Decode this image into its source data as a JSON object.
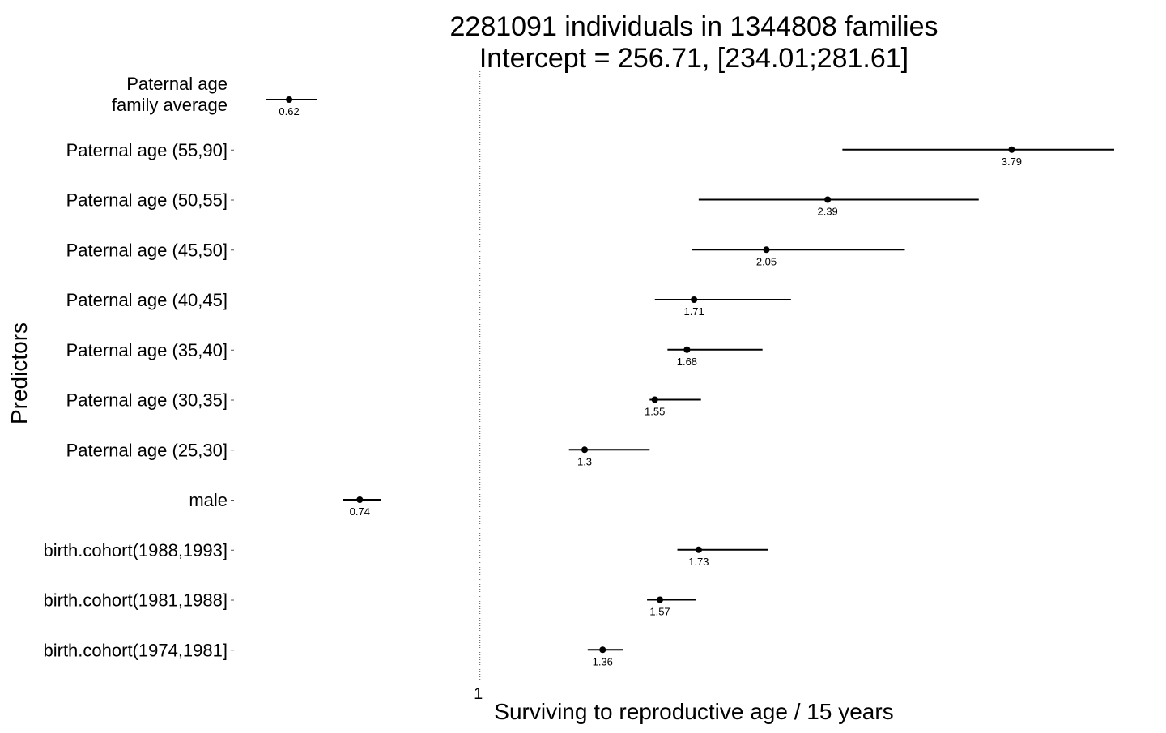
{
  "chart_data": {
    "type": "forest",
    "title_lines": [
      "2281091 individuals in 1344808 families",
      "Intercept = 256.71, [234.01;281.61]"
    ],
    "xlabel": "Surviving to reproductive age / 15 years",
    "ylabel": "Predictors",
    "x_scale": "log",
    "xlim": [
      0.54,
      4.9
    ],
    "reference_line": 1,
    "x_ticks": [
      {
        "value": 1,
        "label": "1"
      }
    ],
    "grid": false,
    "legend": "none",
    "colors": {
      "point": "#000000",
      "interval": "#000000",
      "reference_line": "#555555"
    },
    "rows": [
      {
        "label_lines": [
          "Paternal age",
          "family average"
        ],
        "estimate": 0.62,
        "value_label": "0.62",
        "ci": [
          0.585,
          0.665
        ]
      },
      {
        "label_lines": [
          "Paternal age (55,90]"
        ],
        "estimate": 3.79,
        "value_label": "3.79",
        "ci": [
          2.48,
          4.9
        ]
      },
      {
        "label_lines": [
          "Paternal age (50,55]"
        ],
        "estimate": 2.39,
        "value_label": "2.39",
        "ci": [
          1.73,
          3.49
        ]
      },
      {
        "label_lines": [
          "Paternal age (45,50]"
        ],
        "estimate": 2.05,
        "value_label": "2.05",
        "ci": [
          1.7,
          2.9
        ]
      },
      {
        "label_lines": [
          "Paternal age (40,45]"
        ],
        "estimate": 1.71,
        "value_label": "1.71",
        "ci": [
          1.55,
          2.18
        ]
      },
      {
        "label_lines": [
          "Paternal age (35,40]"
        ],
        "estimate": 1.68,
        "value_label": "1.68",
        "ci": [
          1.6,
          2.03
        ]
      },
      {
        "label_lines": [
          "Paternal age (30,35]"
        ],
        "estimate": 1.55,
        "value_label": "1.55",
        "ci": [
          1.53,
          1.74
        ]
      },
      {
        "label_lines": [
          "Paternal age (25,30]"
        ],
        "estimate": 1.3,
        "value_label": "1.3",
        "ci": [
          1.25,
          1.53
        ]
      },
      {
        "label_lines": [
          "male"
        ],
        "estimate": 0.74,
        "value_label": "0.74",
        "ci": [
          0.71,
          0.78
        ]
      },
      {
        "label_lines": [
          "birth.cohort(1988,1993]"
        ],
        "estimate": 1.73,
        "value_label": "1.73",
        "ci": [
          1.64,
          2.06
        ]
      },
      {
        "label_lines": [
          "birth.cohort(1981,1988]"
        ],
        "estimate": 1.57,
        "value_label": "1.57",
        "ci": [
          1.52,
          1.72
        ]
      },
      {
        "label_lines": [
          "birth.cohort(1974,1981]"
        ],
        "estimate": 1.36,
        "value_label": "1.36",
        "ci": [
          1.31,
          1.43
        ]
      }
    ]
  }
}
